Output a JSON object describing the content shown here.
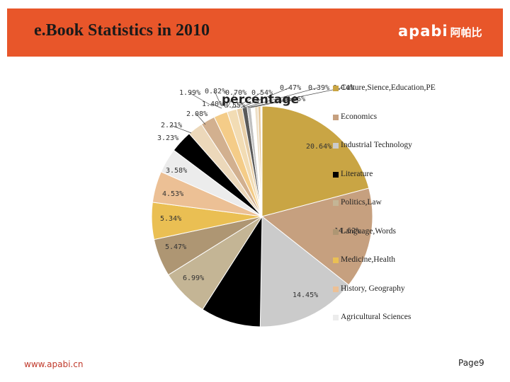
{
  "slide": {
    "title": "e.Book Statistics in 2010",
    "logo_latin": "apabi",
    "logo_cjk": "阿帕比",
    "footer_url": "www.apabi.cn",
    "page_number": "Page9"
  },
  "chart_data": {
    "type": "pie",
    "title": "percentage",
    "legend_position": "right",
    "categories": [
      "Culture,Sience,Education,PE",
      "Economics",
      "Industrial Technology",
      "Literature",
      "Politics,Law",
      "Language,Words",
      "Medicine,Health",
      "History, Geography",
      "Agricultural Sciences"
    ],
    "labels": [
      "20.64%",
      "14.62%",
      "14.45%",
      "",
      "6.99%",
      "5.47%",
      "5.34%",
      "4.53%",
      "3.58%",
      "3.23%",
      "2.21%",
      "2.08%",
      "1.99%",
      "1.40%",
      "0.82%",
      "0.70%",
      "0.55%",
      "0.54%",
      "0.47%",
      "0.39%",
      "0.14%",
      "0.06%"
    ],
    "values": [
      20.64,
      14.62,
      14.45,
      8.68,
      6.99,
      5.47,
      5.34,
      4.53,
      3.58,
      3.23,
      2.21,
      2.08,
      1.99,
      1.4,
      0.82,
      0.7,
      0.55,
      0.54,
      0.47,
      0.39,
      0.14,
      0.06
    ],
    "colors": [
      "#c9a544",
      "#c6a07f",
      "#cbcbcb",
      "#000000",
      "#c4b595",
      "#ae9673",
      "#eabf53",
      "#ecc095",
      "#ececec",
      "#000000",
      "#ecd8ba",
      "#d2b08f",
      "#f4cc88",
      "#f2dcb4",
      "#e8cfa8",
      "#5a5a5a",
      "#c0c0c0",
      "#ffffff",
      "#eee0c8",
      "#e6c596",
      "#f0e2c0",
      "#d8c8a8"
    ]
  }
}
